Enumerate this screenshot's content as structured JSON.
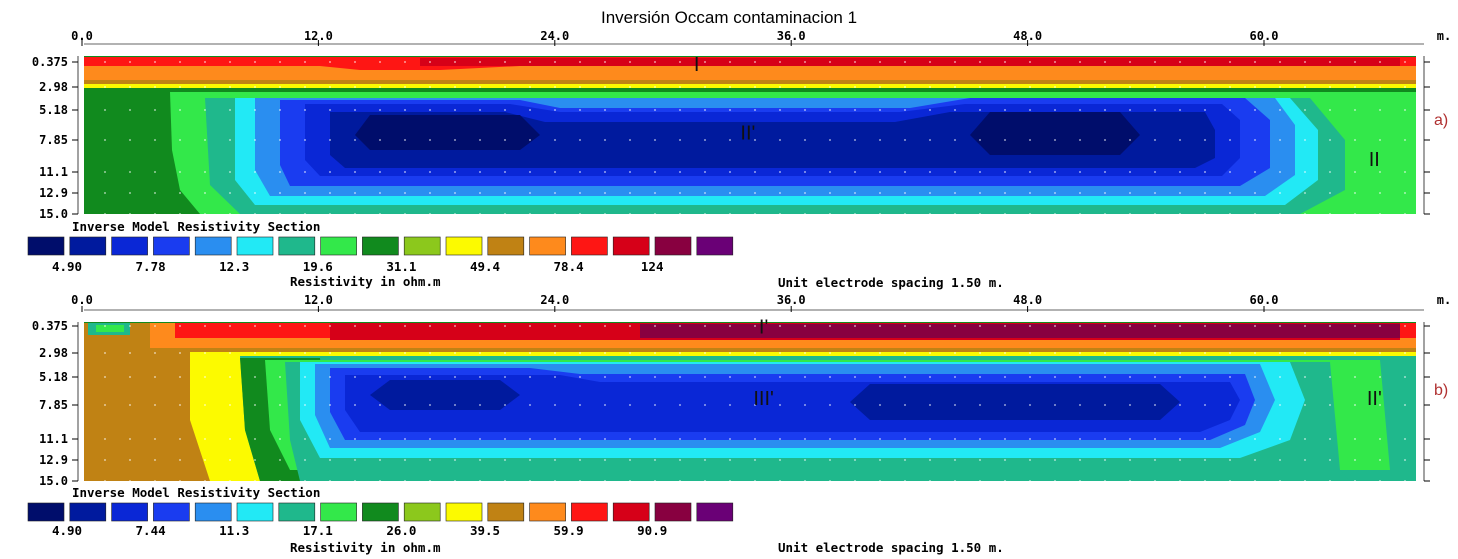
{
  "title": "Inversión Occam contaminacion 1",
  "chart_data": [
    {
      "type": "heatmap",
      "panel_label": "a)",
      "x_unit": "m.",
      "x_ticks": [
        "0.0",
        "12.0",
        "24.0",
        "36.0",
        "48.0",
        "60.0"
      ],
      "x_tick_values": [
        0,
        12,
        24,
        36,
        48,
        60
      ],
      "xlim": [
        0,
        68
      ],
      "depth_ticks": [
        "0.375",
        "2.98",
        "5.18",
        "7.85",
        "11.1",
        "12.9",
        "15.0"
      ],
      "legend_title": "Inverse Model Resistivity Section",
      "legend_unit": "Resistivity in ohm.m",
      "scale_labels": [
        "4.90",
        "7.78",
        "12.3",
        "19.6",
        "31.1",
        "49.4",
        "78.4",
        "124"
      ],
      "colors": [
        "#000d6b",
        "#001a9e",
        "#0a27d6",
        "#1a3cf0",
        "#2a8ef0",
        "#22e9f5",
        "#1fb88c",
        "#33e84a",
        "#118a1e",
        "#8cc81c",
        "#fcfa00",
        "#c08214",
        "#fe8a1c",
        "#fe1614",
        "#d60018",
        "#880040",
        "#6a0076"
      ],
      "electrode_spacing_note": "Unit electrode spacing 1.50 m.",
      "annotations": [
        {
          "text": "I",
          "x": 31.2,
          "depth": 0.6
        },
        {
          "text": "II'",
          "x": 33.8,
          "depth": 7.2
        },
        {
          "text": "II",
          "x": 65.6,
          "depth": 9.8
        }
      ]
    },
    {
      "type": "heatmap",
      "panel_label": "b)",
      "x_unit": "m.",
      "x_ticks": [
        "0.0",
        "12.0",
        "24.0",
        "36.0",
        "48.0",
        "60.0"
      ],
      "x_tick_values": [
        0,
        12,
        24,
        36,
        48,
        60
      ],
      "xlim": [
        0,
        68
      ],
      "depth_ticks": [
        "0.375",
        "2.98",
        "5.18",
        "7.85",
        "11.1",
        "12.9",
        "15.0"
      ],
      "legend_title": "Inverse Model Resistivity Section",
      "legend_unit": "Resistivity in ohm.m",
      "scale_labels": [
        "4.90",
        "7.44",
        "11.3",
        "17.1",
        "26.0",
        "39.5",
        "59.9",
        "90.9"
      ],
      "colors": [
        "#000d6b",
        "#001a9e",
        "#0a27d6",
        "#1a3cf0",
        "#2a8ef0",
        "#22e9f5",
        "#1fb88c",
        "#33e84a",
        "#118a1e",
        "#8cc81c",
        "#fcfa00",
        "#c08214",
        "#fe8a1c",
        "#fe1614",
        "#d60018",
        "#880040",
        "#6a0076"
      ],
      "electrode_spacing_note": "Unit electrode spacing 1.50 m.",
      "annotations": [
        {
          "text": "I'",
          "x": 34.6,
          "depth": 0.4
        },
        {
          "text": "III'",
          "x": 34.6,
          "depth": 7.2
        },
        {
          "text": "II'",
          "x": 65.6,
          "depth": 7.2
        }
      ]
    }
  ]
}
